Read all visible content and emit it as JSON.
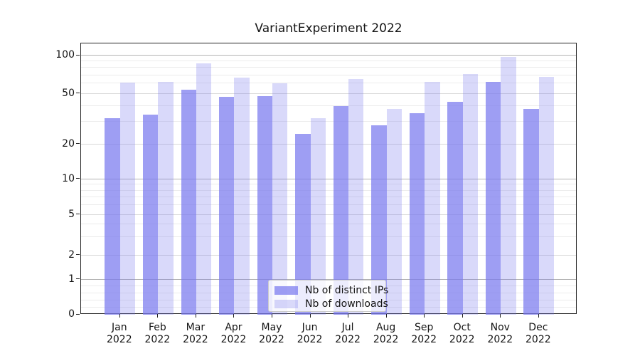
{
  "chart_data": {
    "type": "bar",
    "title": "VariantExperiment 2022",
    "categories": [
      {
        "month": "Jan",
        "year": "2022"
      },
      {
        "month": "Feb",
        "year": "2022"
      },
      {
        "month": "Mar",
        "year": "2022"
      },
      {
        "month": "Apr",
        "year": "2022"
      },
      {
        "month": "May",
        "year": "2022"
      },
      {
        "month": "Jun",
        "year": "2022"
      },
      {
        "month": "Jul",
        "year": "2022"
      },
      {
        "month": "Aug",
        "year": "2022"
      },
      {
        "month": "Sep",
        "year": "2022"
      },
      {
        "month": "Oct",
        "year": "2022"
      },
      {
        "month": "Nov",
        "year": "2022"
      },
      {
        "month": "Dec",
        "year": "2022"
      }
    ],
    "series": [
      {
        "name": "Nb of distinct IPs",
        "color": "rgba(120,120,238,0.72)",
        "values": [
          32,
          34,
          54,
          47,
          48,
          24,
          40,
          28,
          35,
          43,
          62,
          38
        ]
      },
      {
        "name": "Nb of downloads",
        "color": "rgba(120,120,238,0.28)",
        "values": [
          61,
          62,
          87,
          67,
          60,
          32,
          65,
          38,
          62,
          71,
          98,
          68
        ]
      }
    ],
    "yscale": "asinh-like (linear 0-1, logarithmic above 1)",
    "yticks": [
      0,
      1,
      2,
      5,
      10,
      20,
      50,
      100
    ],
    "decade_ticks": [
      1,
      10,
      100
    ],
    "minor_ticks": [
      0.2,
      0.4,
      0.6,
      0.8,
      3,
      4,
      6,
      7,
      8,
      9,
      30,
      40,
      60,
      70,
      80,
      90
    ],
    "ylim": [
      0,
      120
    ],
    "grid": true,
    "legend_position": "lower center",
    "colors": {
      "bar_dark": "rgba(120,120,238,0.72)",
      "bar_light": "rgba(120,120,238,0.28)",
      "grid_decade": "#b2b2b2",
      "grid_mid": "#d9d9d9",
      "grid_minor": "#ececec",
      "spine": "#222222",
      "text": "#141414"
    }
  }
}
